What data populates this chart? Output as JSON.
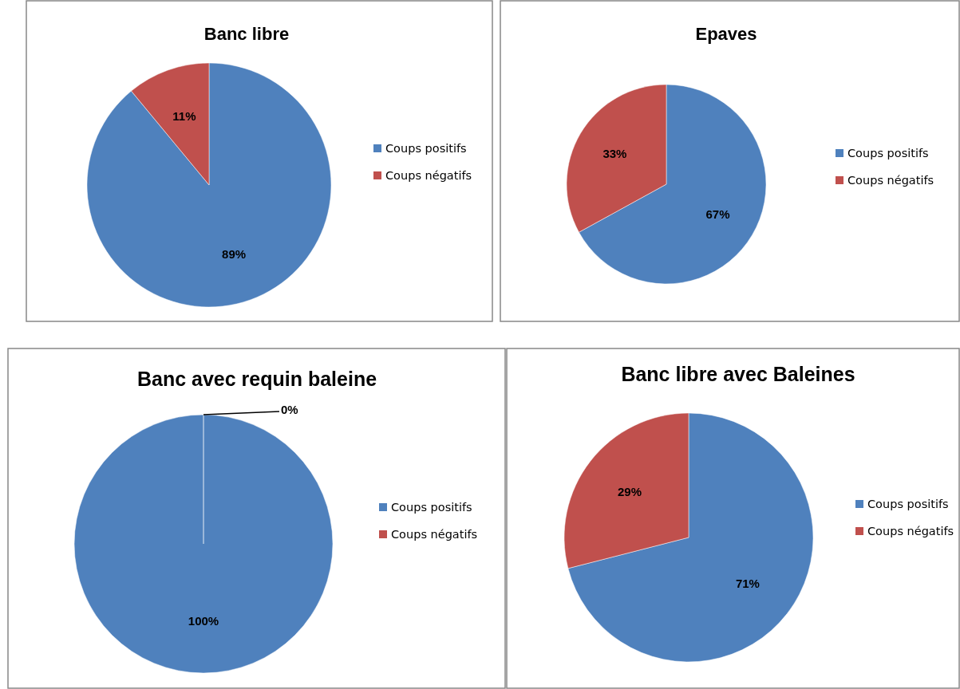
{
  "chart_data": [
    {
      "type": "pie",
      "title": "Banc libre",
      "categories": [
        "Coups positifs",
        "Coups négatifs"
      ],
      "values": [
        89,
        11
      ],
      "colors": [
        "#4f81bd",
        "#c0504d"
      ],
      "value_labels": [
        "89%",
        "11%"
      ],
      "legend": "right"
    },
    {
      "type": "pie",
      "title": "Epaves",
      "categories": [
        "Coups positifs",
        "Coups négatifs"
      ],
      "values": [
        67,
        33
      ],
      "colors": [
        "#4f81bd",
        "#c0504d"
      ],
      "value_labels": [
        "67%",
        "33%"
      ],
      "legend": "right"
    },
    {
      "type": "pie",
      "title": "Banc avec requin baleine",
      "categories": [
        "Coups positifs",
        "Coups négatifs"
      ],
      "values": [
        100,
        0
      ],
      "colors": [
        "#4f81bd",
        "#c0504d"
      ],
      "value_labels": [
        "100%",
        "0%"
      ],
      "legend": "right"
    },
    {
      "type": "pie",
      "title": "Banc libre avec Baleines",
      "categories": [
        "Coups positifs",
        "Coups négatifs"
      ],
      "values": [
        71,
        29
      ],
      "colors": [
        "#4f81bd",
        "#c0504d"
      ],
      "value_labels": [
        "71%",
        "29%"
      ],
      "legend": "right"
    }
  ]
}
